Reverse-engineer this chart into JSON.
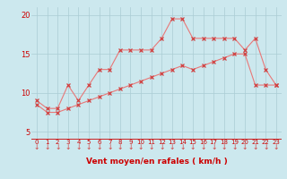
{
  "xlabel": "Vent moyen/en rafales ( km/h )",
  "bg_color": "#cce8ee",
  "line_color": "#e87878",
  "marker_color": "#d04040",
  "grid_color": "#aaccd4",
  "axis_color": "#cc0000",
  "text_color": "#cc0000",
  "x_values": [
    0,
    1,
    2,
    3,
    4,
    5,
    6,
    7,
    8,
    9,
    10,
    11,
    12,
    13,
    14,
    15,
    16,
    17,
    18,
    19,
    20,
    21,
    22,
    23
  ],
  "y_upper": [
    9.0,
    8.0,
    8.0,
    11.0,
    9.0,
    11.0,
    13.0,
    13.0,
    15.5,
    15.5,
    15.5,
    15.5,
    17.0,
    19.5,
    19.5,
    17.0,
    17.0,
    17.0,
    17.0,
    17.0,
    15.5,
    17.0,
    13.0,
    11.0
  ],
  "y_lower": [
    8.5,
    7.5,
    7.5,
    8.0,
    8.5,
    9.0,
    9.5,
    10.0,
    10.5,
    11.0,
    11.5,
    12.0,
    12.5,
    13.0,
    13.5,
    13.0,
    13.5,
    14.0,
    14.5,
    15.0,
    15.0,
    11.0,
    11.0,
    11.0
  ],
  "ylim": [
    4,
    21
  ],
  "xlim": [
    -0.5,
    23.5
  ],
  "yticks": [
    5,
    10,
    15,
    20
  ],
  "xticks": [
    0,
    1,
    2,
    3,
    4,
    5,
    6,
    7,
    8,
    9,
    10,
    11,
    12,
    13,
    14,
    15,
    16,
    17,
    18,
    19,
    20,
    21,
    22,
    23
  ],
  "figsize": [
    3.2,
    2.0
  ],
  "dpi": 100
}
